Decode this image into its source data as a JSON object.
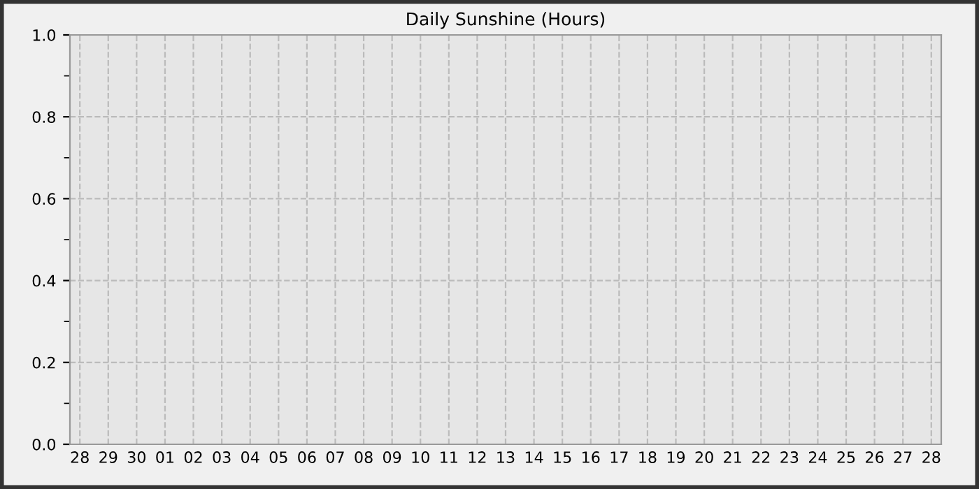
{
  "chart_data": {
    "type": "bar",
    "title": "Daily Sunshine (Hours)",
    "categories": [
      "28",
      "29",
      "30",
      "01",
      "02",
      "03",
      "04",
      "05",
      "06",
      "07",
      "08",
      "09",
      "10",
      "11",
      "12",
      "13",
      "14",
      "15",
      "16",
      "17",
      "18",
      "19",
      "20",
      "21",
      "22",
      "23",
      "24",
      "25",
      "26",
      "27",
      "28"
    ],
    "values": [
      null,
      null,
      null,
      null,
      null,
      null,
      null,
      null,
      null,
      null,
      null,
      null,
      null,
      null,
      null,
      null,
      null,
      null,
      null,
      null,
      null,
      null,
      null,
      null,
      null,
      null,
      null,
      null,
      null,
      null,
      null
    ],
    "ylim": [
      0,
      1
    ],
    "yticks": [
      {
        "value": 0,
        "label": "0.0"
      },
      {
        "value": 0.1,
        "label": null
      },
      {
        "value": 0.2,
        "label": "0.2"
      },
      {
        "value": 0.3,
        "label": null
      },
      {
        "value": 0.4,
        "label": "0.4"
      },
      {
        "value": 0.5,
        "label": null
      },
      {
        "value": 0.6,
        "label": "0.6"
      },
      {
        "value": 0.7,
        "label": null
      },
      {
        "value": 0.8,
        "label": "0.8"
      },
      {
        "value": 0.9,
        "label": null
      },
      {
        "value": 1,
        "label": "1.0"
      }
    ],
    "grid": true
  }
}
